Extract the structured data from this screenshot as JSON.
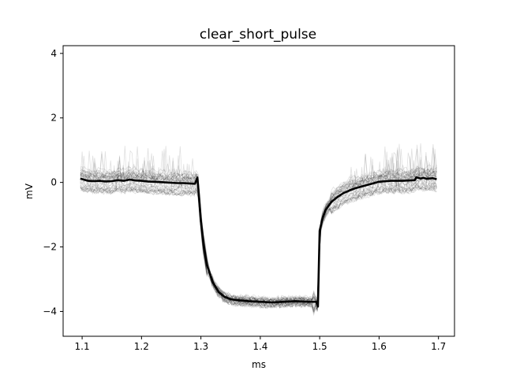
{
  "chart_data": {
    "type": "line",
    "title": "clear_short_pulse",
    "xlabel": "ms",
    "ylabel": "mV",
    "xlim": [
      1.068,
      1.727
    ],
    "ylim": [
      -4.77,
      4.24
    ],
    "xticks": [
      1.1,
      1.2,
      1.3,
      1.4,
      1.5,
      1.6,
      1.7
    ],
    "xtick_labels": [
      "1.1",
      "1.2",
      "1.3",
      "1.4",
      "1.5",
      "1.6",
      "1.7"
    ],
    "yticks": [
      -4,
      -2,
      0,
      2,
      4
    ],
    "ytick_labels": [
      "−4",
      "−2",
      "0",
      "2",
      "4"
    ],
    "grid": false,
    "legend": "none",
    "colors": {
      "mean": "#000000",
      "trials": "#000000"
    },
    "trial_count": 40,
    "series": [
      {
        "role": "mean",
        "x": [
          1.097,
          1.11,
          1.12,
          1.13,
          1.14,
          1.15,
          1.16,
          1.17,
          1.18,
          1.19,
          1.2,
          1.21,
          1.22,
          1.23,
          1.24,
          1.25,
          1.26,
          1.27,
          1.28,
          1.29,
          1.294,
          1.297,
          1.3,
          1.305,
          1.31,
          1.32,
          1.33,
          1.34,
          1.35,
          1.36,
          1.38,
          1.4,
          1.42,
          1.44,
          1.46,
          1.48,
          1.494,
          1.497,
          1.5,
          1.505,
          1.51,
          1.52,
          1.53,
          1.54,
          1.55,
          1.56,
          1.58,
          1.6,
          1.62,
          1.64,
          1.65,
          1.66,
          1.663,
          1.67,
          1.675,
          1.68,
          1.69,
          1.697
        ],
        "y": [
          0.12,
          0.05,
          0.04,
          0.05,
          0.03,
          0.04,
          0.07,
          0.05,
          0.09,
          0.06,
          0.05,
          0.03,
          0.02,
          0.01,
          0.0,
          -0.01,
          -0.02,
          -0.02,
          -0.03,
          -0.04,
          0.15,
          -0.5,
          -1.2,
          -2.0,
          -2.55,
          -3.1,
          -3.4,
          -3.55,
          -3.62,
          -3.65,
          -3.68,
          -3.7,
          -3.72,
          -3.7,
          -3.68,
          -3.7,
          -3.7,
          -3.85,
          -1.5,
          -1.1,
          -0.85,
          -0.6,
          -0.45,
          -0.33,
          -0.25,
          -0.18,
          -0.08,
          0.02,
          0.05,
          0.05,
          0.06,
          0.07,
          0.16,
          0.12,
          0.14,
          0.11,
          0.13,
          0.1
        ]
      }
    ]
  }
}
